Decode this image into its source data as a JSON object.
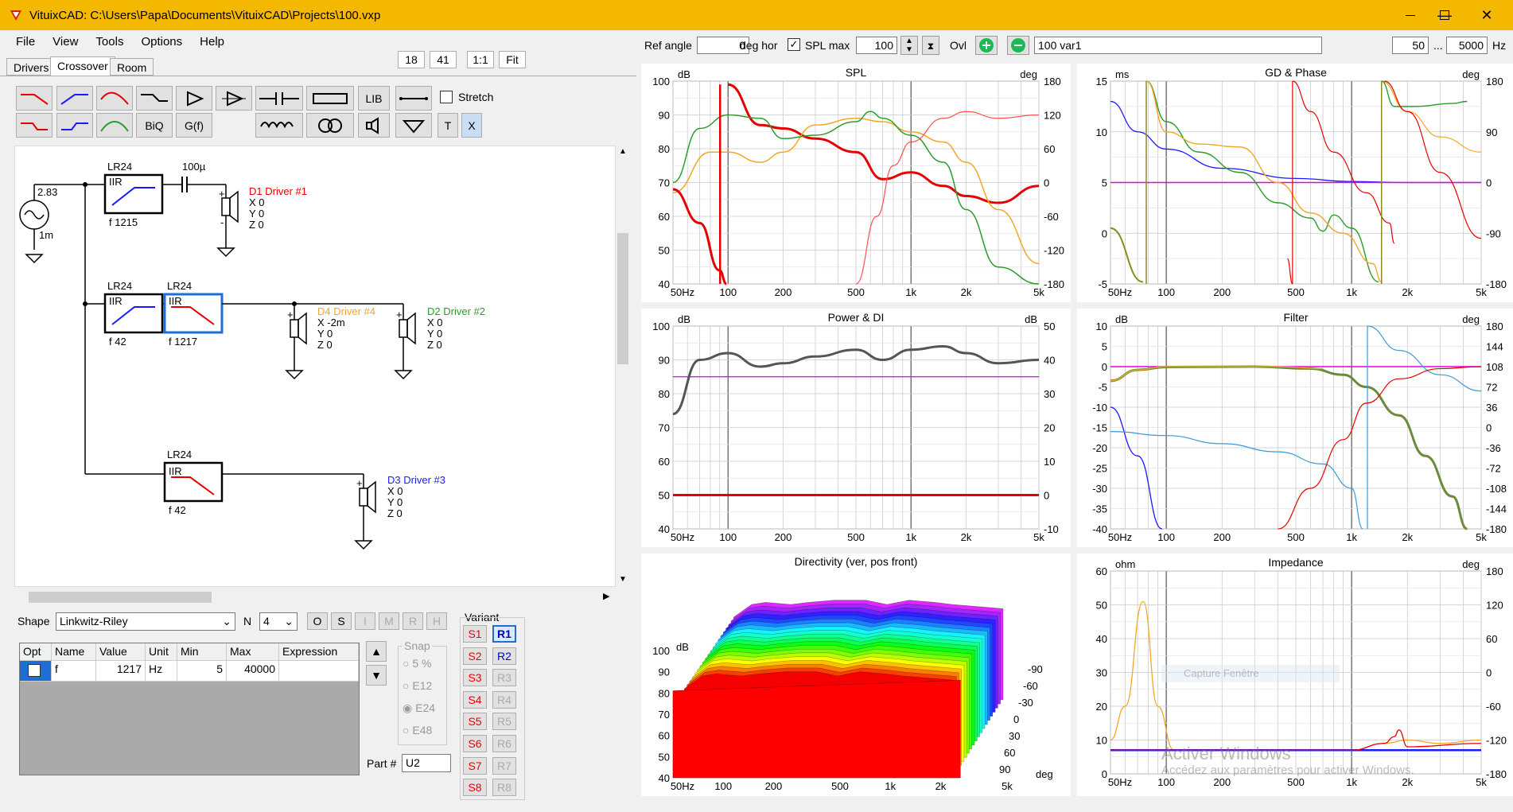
{
  "window": {
    "title": "VituixCAD: C:\\Users\\Papa\\Documents\\VituixCAD\\Projects\\100.vxp",
    "minimize": "—",
    "maximize": "☐",
    "close": "✕"
  },
  "menu": [
    "File",
    "View",
    "Tools",
    "Options",
    "Help"
  ],
  "tabs": [
    "Drivers",
    "Crossover",
    "Room"
  ],
  "view_buttons": [
    "18",
    "41",
    "1:1",
    "Fit"
  ],
  "toolbar": {
    "lib": "LIB",
    "biq": "BiQ",
    "gf": "G(f)",
    "t": "T",
    "x": "X",
    "stretch": "Stretch"
  },
  "schematic": {
    "source": {
      "voltage": "2.83",
      "resistance": "1m"
    },
    "blocks": [
      {
        "type": "LR24",
        "kind": "IIR",
        "f": "f  1215"
      },
      {
        "type": "LR24",
        "kind": "IIR",
        "f": "f  42"
      },
      {
        "type": "LR24",
        "kind": "IIR",
        "f": "f  1217"
      },
      {
        "type": "LR24",
        "kind": "IIR",
        "f": "f  42"
      }
    ],
    "capacitor": "100µ",
    "drivers": [
      {
        "name": "D1 Driver #1",
        "color": "#e60000",
        "x": "X 0",
        "y": "Y 0",
        "z": "Z 0"
      },
      {
        "name": "D4 Driver #4",
        "color": "#f5a623",
        "x": "X -2m",
        "y": "Y 0",
        "z": "Z 0"
      },
      {
        "name": "D2 Driver #2",
        "color": "#2a9d2a",
        "x": "X 0",
        "y": "Y 0",
        "z": "Z 0"
      },
      {
        "name": "D3 Driver #3",
        "color": "#1a1aff",
        "x": "X 0",
        "y": "Y 0",
        "z": "Z 0"
      }
    ]
  },
  "params": {
    "shape_label": "Shape",
    "shape_value": "Linkwitz-Riley",
    "n_label": "N",
    "n_value": "4",
    "flags": [
      "O",
      "S",
      "I",
      "M",
      "R",
      "H"
    ],
    "columns": [
      "Opt",
      "Name",
      "Value",
      "Unit",
      "Min",
      "Max",
      "Expression"
    ],
    "row": {
      "name": "f",
      "value": "1217",
      "unit": "Hz",
      "min": "5",
      "max": "40000",
      "expression": ""
    },
    "snap_label": "Snap",
    "snap": [
      "5 %",
      "E12",
      "E24",
      "E48"
    ],
    "part_label": "Part #",
    "part_value": "U2",
    "variant_label": "Variant",
    "variants_s": [
      "S1",
      "S2",
      "S3",
      "S4",
      "S5",
      "S6",
      "S7",
      "S8"
    ],
    "variants_r": [
      "R1",
      "R2",
      "R3",
      "R4",
      "R5",
      "R6",
      "R7",
      "R8"
    ]
  },
  "top_controls": {
    "ref_angle_label": "Ref angle",
    "ref_angle": "0",
    "deg_hor": "deg hor",
    "spl_max_label": "SPL max",
    "spl_max": "100",
    "ovl": "Ovl",
    "variant_name": "100 var1",
    "f_min": "50",
    "dots": "...",
    "f_max": "5000",
    "hz": "Hz"
  },
  "colors": {
    "titlebar": "#f5b800",
    "red": "#e60000",
    "orange": "#f5a623",
    "green": "#2a9d2a",
    "blue": "#1a1aff",
    "magenta": "#e000e0",
    "gray": "#555555",
    "lightblue": "#3a9ad9"
  },
  "watermark": {
    "line1": "Activer Windows",
    "line2": "Accédez aux paramètres pour activer Windows.",
    "capture": "Capture Fenêtre"
  },
  "charts": {
    "spl": {
      "title": "SPL",
      "ylabel": "dB",
      "y2label": "deg",
      "yticks": [
        "100",
        "90",
        "80",
        "70",
        "60",
        "50",
        "40"
      ],
      "y2ticks": [
        "180",
        "120",
        "60",
        "0",
        "-60",
        "-120",
        "-180"
      ],
      "xticks": [
        "50Hz",
        "100",
        "200",
        "500",
        "1k",
        "2k",
        "5k"
      ]
    },
    "gd": {
      "title": "GD & Phase",
      "ylabel": "ms",
      "y2label": "deg",
      "yticks": [
        "15",
        "10",
        "5",
        "0",
        "-5"
      ],
      "y2ticks": [
        "180",
        "90",
        "0",
        "-90",
        "-180"
      ],
      "xticks": [
        "50Hz",
        "100",
        "200",
        "500",
        "1k",
        "2k",
        "5k"
      ]
    },
    "power": {
      "title": "Power & DI",
      "ylabel": "dB",
      "y2label": "dB",
      "yticks": [
        "100",
        "90",
        "80",
        "70",
        "60",
        "50",
        "40"
      ],
      "y2ticks": [
        "50",
        "40",
        "30",
        "20",
        "10",
        "0",
        "-10"
      ],
      "xticks": [
        "50Hz",
        "100",
        "200",
        "500",
        "1k",
        "2k",
        "5k"
      ]
    },
    "filter": {
      "title": "Filter",
      "ylabel": "dB",
      "y2label": "deg",
      "yticks": [
        "10",
        "5",
        "0",
        "-5",
        "-10",
        "-15",
        "-20",
        "-25",
        "-30",
        "-35",
        "-40"
      ],
      "y2ticks": [
        "180",
        "144",
        "108",
        "72",
        "36",
        "0",
        "-36",
        "-72",
        "-108",
        "-144",
        "-180"
      ],
      "xticks": [
        "50Hz",
        "100",
        "200",
        "500",
        "1k",
        "2k",
        "5k"
      ]
    },
    "dir": {
      "title": "Directivity (ver, pos front)",
      "ylabel": "dB",
      "yticks": [
        "100",
        "90",
        "80",
        "70",
        "60",
        "50",
        "40"
      ],
      "zticks": [
        "-90",
        "-60",
        "-30",
        "0",
        "30",
        "60",
        "90"
      ],
      "zlabel": "deg",
      "xticks": [
        "50Hz",
        "100",
        "200",
        "500",
        "1k",
        "2k",
        "5k"
      ]
    },
    "imp": {
      "title": "Impedance",
      "ylabel": "ohm",
      "y2label": "deg",
      "yticks": [
        "60",
        "50",
        "40",
        "30",
        "20",
        "10",
        "0"
      ],
      "y2ticks": [
        "180",
        "120",
        "60",
        "0",
        "-60",
        "-120",
        "-180"
      ],
      "xticks": [
        "50Hz",
        "100",
        "200",
        "500",
        "1k",
        "2k",
        "5k"
      ]
    }
  },
  "chart_data": [
    {
      "type": "line",
      "title": "SPL",
      "xlim": [
        50,
        5000
      ],
      "ylim": [
        40,
        100
      ],
      "series": [
        {
          "name": "",
          "color": "#e60000",
          "x": [
            100,
            150,
            200,
            300,
            500,
            700,
            1000,
            1500,
            2000,
            3000,
            5000
          ],
          "y": [
            99,
            87,
            86,
            83,
            79,
            71,
            73,
            69,
            66,
            64,
            69
          ]
        },
        {
          "name": "",
          "color": "#f5a623",
          "x": [
            50,
            80,
            100,
            150,
            200,
            300,
            500,
            700,
            1000,
            1500,
            2000,
            3000,
            5000
          ],
          "y": [
            67,
            79,
            79,
            76,
            79,
            87,
            89,
            88,
            85,
            82,
            76,
            62,
            46
          ]
        },
        {
          "name": "",
          "color": "#2a9d2a",
          "x": [
            50,
            70,
            100,
            150,
            200,
            300,
            500,
            600,
            700,
            1000,
            1500,
            2000,
            3000,
            5000
          ],
          "y": [
            70,
            86,
            90,
            89,
            83,
            84,
            88,
            91,
            89,
            84,
            76,
            62,
            45,
            40
          ]
        }
      ]
    },
    {
      "type": "line",
      "title": "Power & DI",
      "xlim": [
        50,
        5000
      ],
      "ylim": [
        40,
        100
      ],
      "series": [
        {
          "name": "",
          "color": "#555555",
          "x": [
            50,
            70,
            100,
            150,
            200,
            300,
            500,
            700,
            1000,
            1500,
            2000,
            3000,
            5000
          ],
          "y": [
            74,
            90,
            92,
            88,
            89,
            91,
            93,
            90,
            93,
            94,
            92,
            89,
            90
          ]
        },
        {
          "name": "",
          "color": "#e60000",
          "x": [
            50,
            5000
          ],
          "y": [
            50,
            50
          ]
        }
      ]
    },
    {
      "type": "line",
      "title": "Impedance",
      "xlim": [
        50,
        5000
      ],
      "ylim": [
        0,
        60
      ],
      "series": [
        {
          "name": "",
          "color": "#f5a623",
          "x": [
            50,
            60,
            75,
            90,
            110,
            150,
            300,
            1000,
            1500,
            2000,
            3000,
            5000
          ],
          "y": [
            10,
            20,
            51,
            20,
            7,
            7,
            7,
            7,
            9,
            10,
            9,
            10
          ]
        },
        {
          "name": "",
          "color": "#1a1aff",
          "x": [
            50,
            5000
          ],
          "y": [
            7,
            7
          ]
        },
        {
          "name": "",
          "color": "#e60000",
          "x": [
            50,
            500,
            1000,
            1500,
            1700,
            1800,
            2000,
            5000
          ],
          "y": [
            7,
            7,
            7,
            9,
            11,
            13,
            8,
            9
          ]
        }
      ]
    }
  ]
}
